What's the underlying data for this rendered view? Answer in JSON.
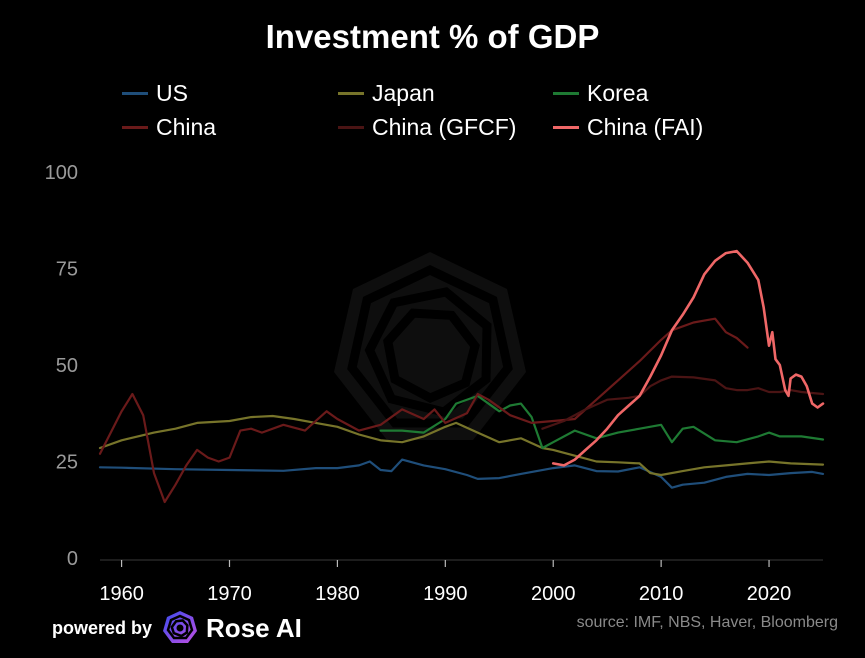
{
  "header": {
    "title": "Investment % of GDP"
  },
  "footer": {
    "powered_by": "powered by",
    "brand": "Rose AI",
    "source": "source: IMF, NBS, Haver, Bloomberg"
  },
  "chart_data": {
    "type": "line",
    "title": "Investment % of GDP",
    "xlabel": "",
    "ylabel": "",
    "xlim": [
      1958,
      2025
    ],
    "ylim": [
      0,
      100
    ],
    "x_ticks": [
      1960,
      1970,
      1980,
      1990,
      2000,
      2010,
      2020
    ],
    "y_ticks": [
      0,
      25,
      50,
      75,
      100
    ],
    "grid": false,
    "legend_position": "top",
    "series": [
      {
        "name": "US",
        "color": "#1f4e7a",
        "points": [
          [
            1958,
            23.5
          ],
          [
            1960,
            23.4
          ],
          [
            1965,
            23.0
          ],
          [
            1970,
            22.8
          ],
          [
            1975,
            22.6
          ],
          [
            1978,
            23.3
          ],
          [
            1980,
            23.3
          ],
          [
            1982,
            24.0
          ],
          [
            1983,
            25.0
          ],
          [
            1984,
            22.8
          ],
          [
            1985,
            22.5
          ],
          [
            1986,
            25.5
          ],
          [
            1988,
            24.0
          ],
          [
            1990,
            23.0
          ],
          [
            1992,
            21.5
          ],
          [
            1993,
            20.5
          ],
          [
            1995,
            20.7
          ],
          [
            1997,
            21.8
          ],
          [
            2000,
            23.3
          ],
          [
            2002,
            24.0
          ],
          [
            2004,
            22.5
          ],
          [
            2006,
            22.4
          ],
          [
            2008,
            23.5
          ],
          [
            2010,
            21.0
          ],
          [
            2011,
            18.2
          ],
          [
            2012,
            19.0
          ],
          [
            2014,
            19.5
          ],
          [
            2016,
            21.0
          ],
          [
            2018,
            21.8
          ],
          [
            2020,
            21.5
          ],
          [
            2022,
            22.0
          ],
          [
            2024,
            22.3
          ],
          [
            2025,
            21.8
          ]
        ]
      },
      {
        "name": "Japan",
        "color": "#77742a",
        "points": [
          [
            1958,
            28.5
          ],
          [
            1960,
            30.5
          ],
          [
            1963,
            32.5
          ],
          [
            1965,
            33.5
          ],
          [
            1967,
            35.0
          ],
          [
            1970,
            35.5
          ],
          [
            1972,
            36.5
          ],
          [
            1974,
            36.8
          ],
          [
            1976,
            36.0
          ],
          [
            1978,
            35.0
          ],
          [
            1980,
            34.0
          ],
          [
            1982,
            32.0
          ],
          [
            1984,
            30.5
          ],
          [
            1986,
            30.0
          ],
          [
            1988,
            31.5
          ],
          [
            1990,
            34.0
          ],
          [
            1991,
            35.0
          ],
          [
            1993,
            32.5
          ],
          [
            1995,
            30.0
          ],
          [
            1997,
            31.0
          ],
          [
            1999,
            28.5
          ],
          [
            2000,
            28.0
          ],
          [
            2002,
            26.5
          ],
          [
            2004,
            25.0
          ],
          [
            2006,
            24.8
          ],
          [
            2008,
            24.5
          ],
          [
            2009,
            22.0
          ],
          [
            2010,
            21.5
          ],
          [
            2012,
            22.5
          ],
          [
            2014,
            23.5
          ],
          [
            2016,
            24.0
          ],
          [
            2018,
            24.5
          ],
          [
            2020,
            25.0
          ],
          [
            2022,
            24.5
          ],
          [
            2025,
            24.2
          ]
        ]
      },
      {
        "name": "Korea",
        "color": "#1e7a33",
        "points": [
          [
            1984,
            33.0
          ],
          [
            1986,
            33.0
          ],
          [
            1988,
            32.5
          ],
          [
            1990,
            36.0
          ],
          [
            1991,
            40.0
          ],
          [
            1993,
            42.0
          ],
          [
            1995,
            38.0
          ],
          [
            1996,
            39.5
          ],
          [
            1997,
            40.0
          ],
          [
            1998,
            36.5
          ],
          [
            1999,
            28.5
          ],
          [
            2000,
            30.0
          ],
          [
            2002,
            33.0
          ],
          [
            2004,
            31.0
          ],
          [
            2006,
            32.5
          ],
          [
            2008,
            33.5
          ],
          [
            2010,
            34.5
          ],
          [
            2011,
            30.0
          ],
          [
            2012,
            33.5
          ],
          [
            2013,
            34.0
          ],
          [
            2015,
            30.5
          ],
          [
            2017,
            30.0
          ],
          [
            2019,
            31.5
          ],
          [
            2020,
            32.5
          ],
          [
            2021,
            31.5
          ],
          [
            2023,
            31.5
          ],
          [
            2025,
            30.7
          ]
        ]
      },
      {
        "name": "China",
        "color": "#6a1a1a",
        "points": [
          [
            1958,
            27.0
          ],
          [
            1960,
            38.0
          ],
          [
            1961,
            42.5
          ],
          [
            1962,
            37.0
          ],
          [
            1963,
            22.0
          ],
          [
            1964,
            14.5
          ],
          [
            1965,
            19.0
          ],
          [
            1966,
            24.0
          ],
          [
            1967,
            28.0
          ],
          [
            1968,
            26.0
          ],
          [
            1969,
            25.0
          ],
          [
            1970,
            26.0
          ],
          [
            1971,
            33.0
          ],
          [
            1972,
            33.5
          ],
          [
            1973,
            32.5
          ],
          [
            1975,
            34.5
          ],
          [
            1977,
            33.0
          ],
          [
            1979,
            38.0
          ],
          [
            1980,
            36.0
          ],
          [
            1982,
            33.0
          ],
          [
            1984,
            34.5
          ],
          [
            1986,
            38.5
          ],
          [
            1988,
            36.0
          ],
          [
            1989,
            38.5
          ],
          [
            1990,
            35.0
          ],
          [
            1992,
            37.5
          ],
          [
            1993,
            42.5
          ],
          [
            1994,
            41.0
          ],
          [
            1996,
            37.0
          ],
          [
            1998,
            35.0
          ],
          [
            2000,
            35.5
          ],
          [
            2002,
            36.0
          ],
          [
            2004,
            41.0
          ],
          [
            2006,
            46.0
          ],
          [
            2008,
            51.0
          ],
          [
            2010,
            56.5
          ],
          [
            2011,
            59.0
          ],
          [
            2013,
            61.0
          ],
          [
            2014,
            61.5
          ],
          [
            2015,
            62.0
          ],
          [
            2016,
            58.5
          ],
          [
            2017,
            57.0
          ],
          [
            2018,
            54.5
          ]
        ]
      },
      {
        "name": "China (GFCF)",
        "color": "#4a1414",
        "points": [
          [
            1999,
            33.5
          ],
          [
            2001,
            35.5
          ],
          [
            2003,
            38.5
          ],
          [
            2005,
            41.0
          ],
          [
            2007,
            41.5
          ],
          [
            2008,
            42.0
          ],
          [
            2009,
            44.5
          ],
          [
            2010,
            46.0
          ],
          [
            2011,
            47.0
          ],
          [
            2013,
            46.8
          ],
          [
            2015,
            46.0
          ],
          [
            2016,
            44.0
          ],
          [
            2017,
            43.5
          ],
          [
            2018,
            43.5
          ],
          [
            2019,
            44.0
          ],
          [
            2020,
            43.0
          ],
          [
            2021,
            43.0
          ],
          [
            2022,
            43.5
          ],
          [
            2023,
            43.0
          ],
          [
            2025,
            42.5
          ]
        ]
      },
      {
        "name": "China (FAI)",
        "color": "#ef6767",
        "points": [
          [
            2000,
            24.5
          ],
          [
            2001,
            24.0
          ],
          [
            2002,
            25.5
          ],
          [
            2003,
            28.0
          ],
          [
            2004,
            30.5
          ],
          [
            2005,
            33.5
          ],
          [
            2006,
            37.0
          ],
          [
            2007,
            39.5
          ],
          [
            2008,
            42.0
          ],
          [
            2009,
            47.0
          ],
          [
            2010,
            52.5
          ],
          [
            2011,
            59.0
          ],
          [
            2012,
            63.0
          ],
          [
            2013,
            67.5
          ],
          [
            2014,
            73.5
          ],
          [
            2015,
            77.0
          ],
          [
            2016,
            79.0
          ],
          [
            2017,
            79.5
          ],
          [
            2018,
            76.5
          ],
          [
            2019,
            72.0
          ],
          [
            2019.5,
            65.0
          ],
          [
            2020,
            55.0
          ],
          [
            2020.3,
            58.5
          ],
          [
            2020.6,
            51.5
          ],
          [
            2021,
            50.0
          ],
          [
            2021.5,
            43.5
          ],
          [
            2021.8,
            42.0
          ],
          [
            2022,
            46.5
          ],
          [
            2022.5,
            47.5
          ],
          [
            2023,
            47.0
          ],
          [
            2023.5,
            44.5
          ],
          [
            2024,
            40.0
          ],
          [
            2024.5,
            39.0
          ],
          [
            2025,
            40.0
          ]
        ]
      }
    ]
  }
}
